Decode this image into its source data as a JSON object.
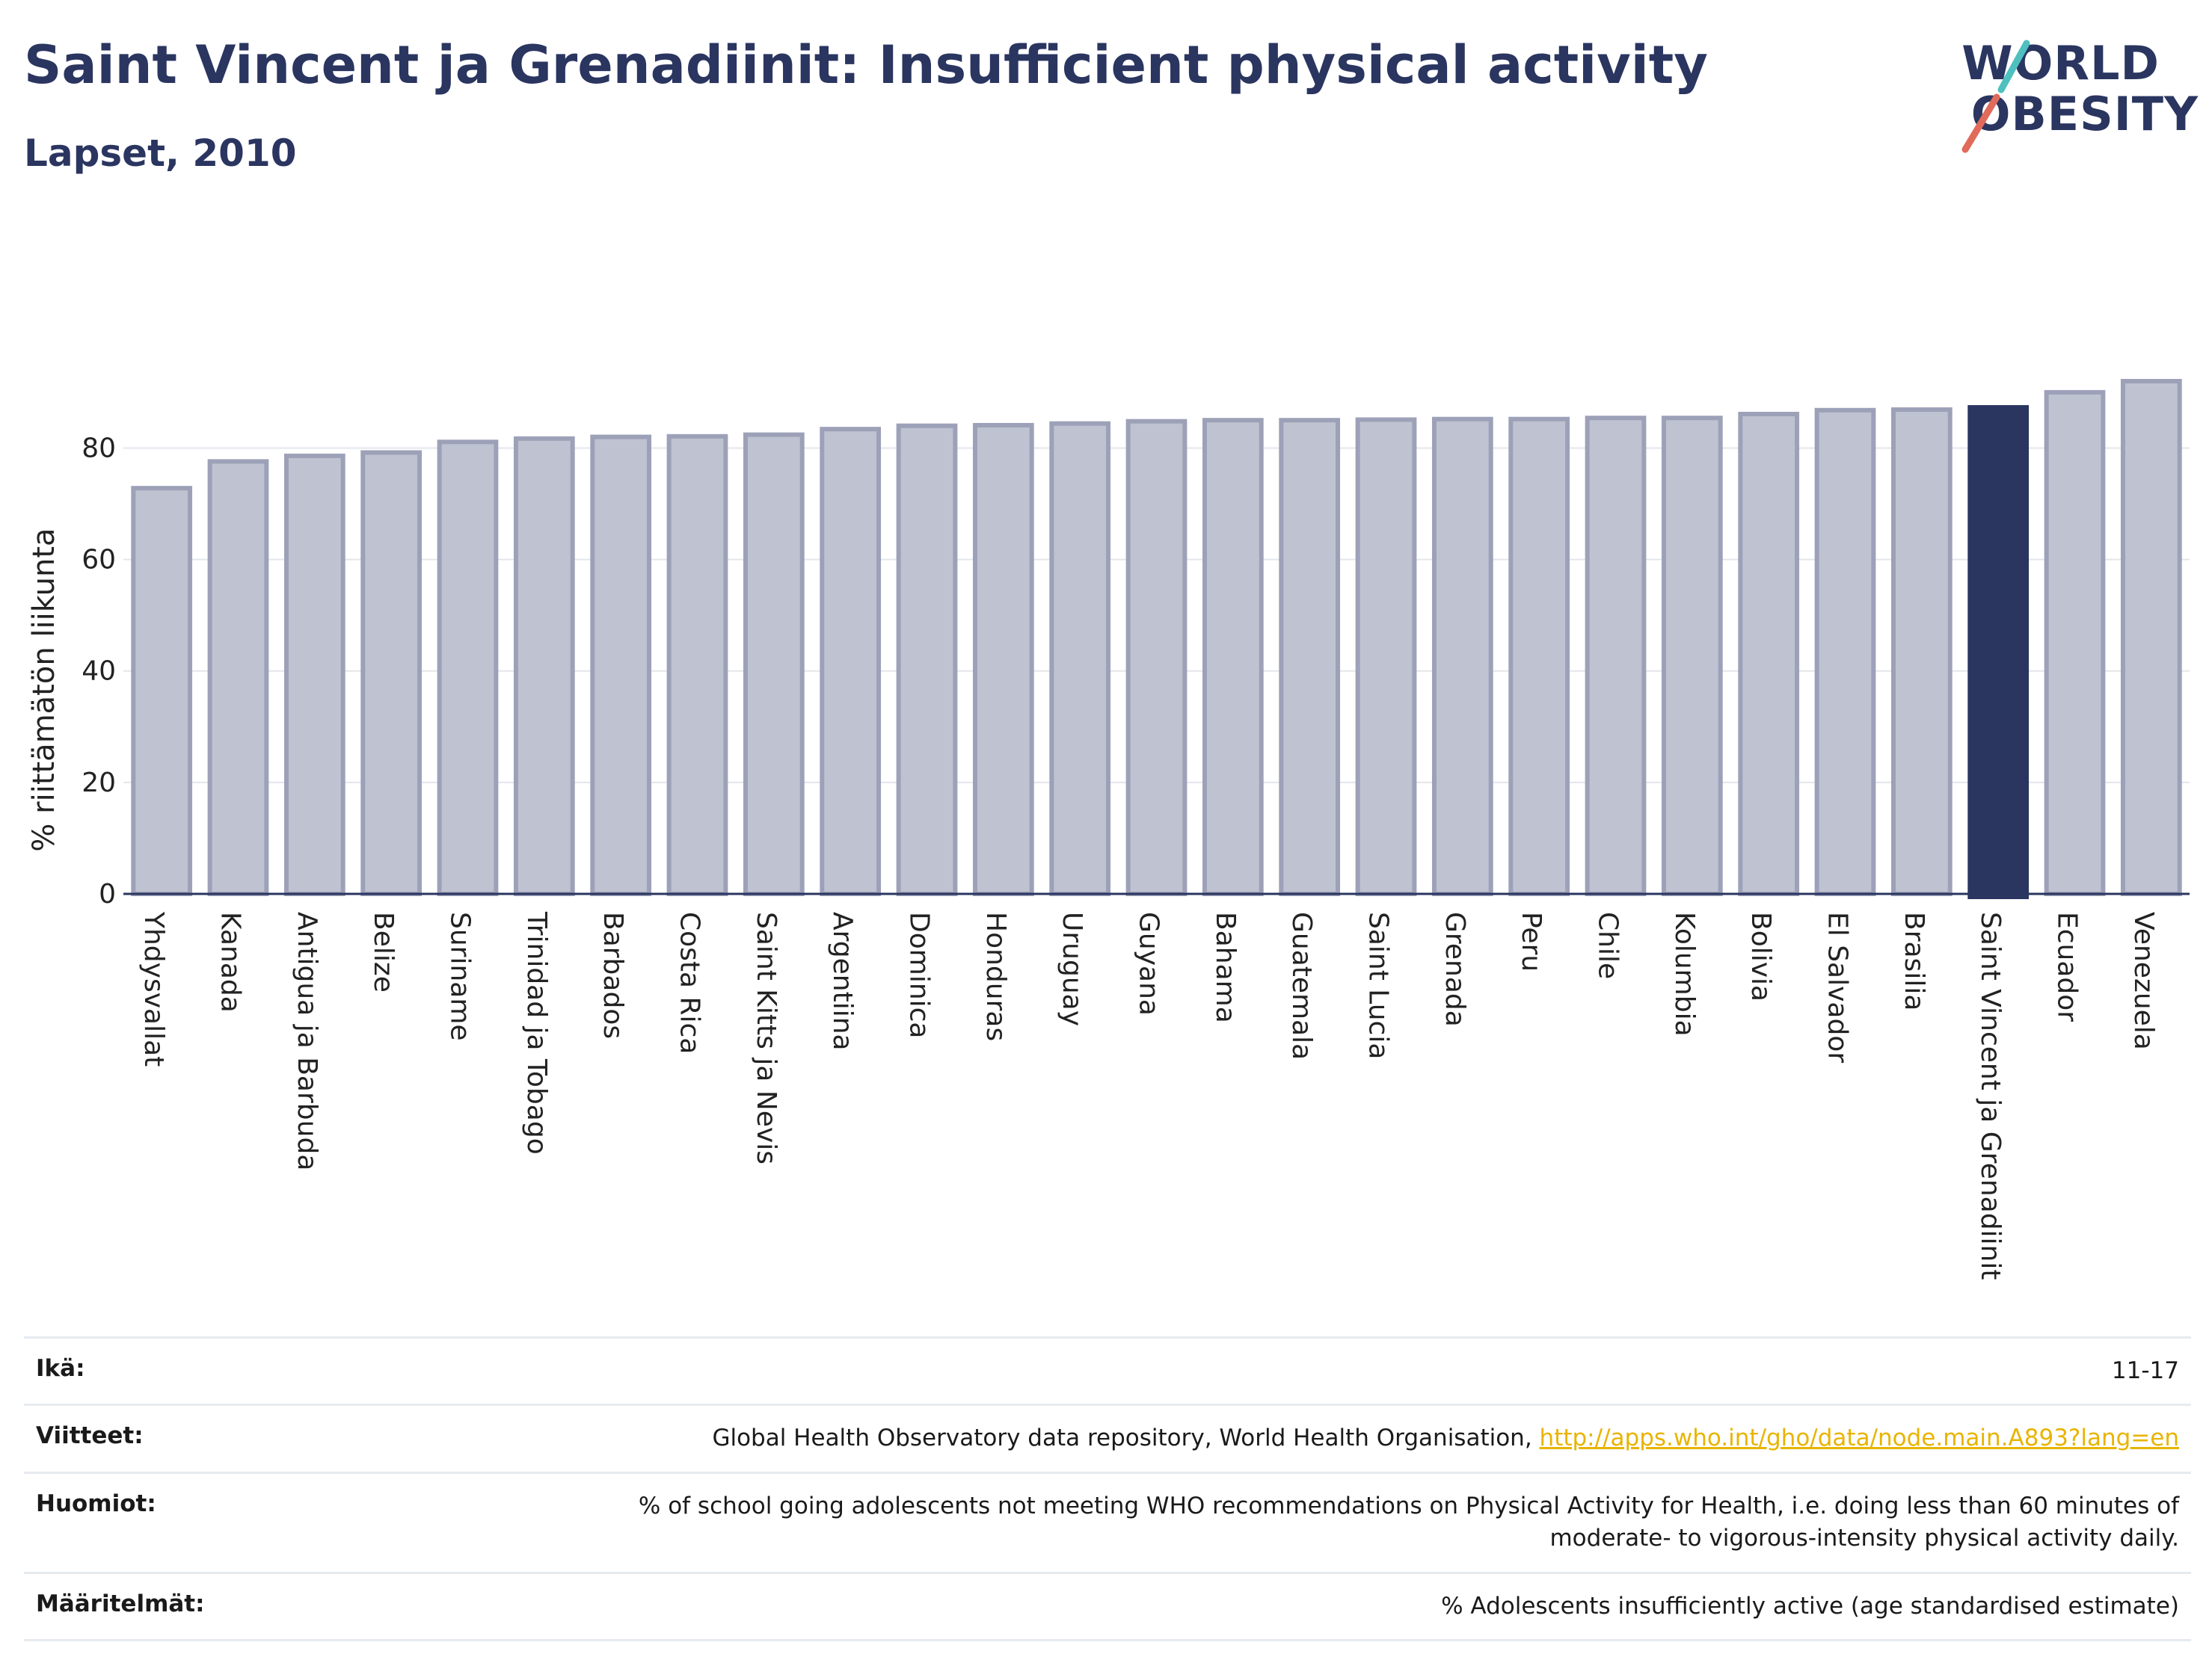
{
  "title": "Saint Vincent ja Grenadiinit: Insufficient physical activity",
  "subtitle": "Lapset, 2010",
  "logo": {
    "line1": "WORLD",
    "line2": "OBESITY"
  },
  "colors": {
    "highlight": "#2a3560",
    "bar": "#bfc2d0",
    "bar_border": "#9da1b8",
    "accent_teal": "#4fc0c0",
    "accent_coral": "#e06b5a",
    "link": "#e8b400"
  },
  "chart_data": {
    "type": "bar",
    "ylabel": "% riittämätön liikunta",
    "xlabel": "",
    "ylim": [
      0,
      92
    ],
    "yticks": [
      0,
      20,
      40,
      60,
      80
    ],
    "grid": true,
    "highlight": "Saint Vincent ja Grenadiinit",
    "categories": [
      "Yhdysvallat",
      "Kanada",
      "Antigua ja Barbuda",
      "Belize",
      "Suriname",
      "Trinidad ja Tobago",
      "Barbados",
      "Costa Rica",
      "Saint Kitts ja Nevis",
      "Argentiina",
      "Dominica",
      "Honduras",
      "Uruguay",
      "Guyana",
      "Bahama",
      "Guatemala",
      "Saint Lucia",
      "Grenada",
      "Peru",
      "Chile",
      "Kolumbia",
      "Bolivia",
      "El Salvador",
      "Brasilia",
      "Saint Vincent ja Grenadiinit",
      "Ecuador",
      "Venezuela"
    ],
    "values": [
      72.8,
      77.6,
      78.6,
      79.2,
      81.1,
      81.7,
      82.0,
      82.1,
      82.4,
      83.4,
      84.0,
      84.1,
      84.4,
      84.8,
      85.0,
      85.0,
      85.1,
      85.2,
      85.2,
      85.4,
      85.4,
      86.1,
      86.8,
      86.9,
      87.3,
      90.0,
      92.0
    ]
  },
  "info": {
    "age_label": "Ikä:",
    "age_value": "11-17",
    "refs_label": "Viitteet:",
    "refs_text": "Global Health Observatory data repository, World Health Organisation, ",
    "refs_link": "http://apps.who.int/gho/data/node.main.A893?lang=en",
    "notes_label": "Huomiot:",
    "notes_line1": "% of school going adolescents not meeting WHO recommendations on Physical Activity for Health, i.e. doing less than 60 minutes of",
    "notes_line2": "moderate- to vigorous-intensity physical activity daily.",
    "defs_label": "Määritelmät:",
    "defs_text": "% Adolescents insufficiently active (age standardised estimate)"
  }
}
